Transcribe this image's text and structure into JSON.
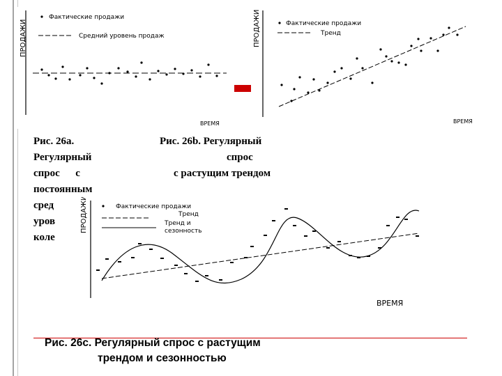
{
  "figure_a": {
    "ylabel": "ПРОДАЖИ",
    "xlabel": "ВРЕМЯ",
    "legend_actual": "Фактические продажи",
    "legend_mean": "Средний уровень продаж",
    "caption_lines": [
      "Рис. 26а.",
      "Регулярный",
      "спрос      с",
      "постоянным",
      "сред",
      "уров",
      "коле"
    ]
  },
  "figure_b": {
    "ylabel": "ПРОДАЖИ",
    "xlabel": "ВРЕМЯ",
    "legend_actual": "Фактические продажи",
    "legend_trend": "Тренд",
    "caption_lines": [
      "Рис. 26b. Регулярный",
      "спрос",
      "с растущим трендом"
    ]
  },
  "figure_c": {
    "ylabel": "ПРОДАЖИ",
    "xlabel": "ВРЕМЯ",
    "legend_actual": "Фактические продажи",
    "legend_trend": "Тренд",
    "legend_season_1": "Тренд и",
    "legend_season_2": "сезонность",
    "caption_lines": [
      "Рис. 26с. Регулярный спрос с растущим",
      "трендом и сезонностью"
    ]
  },
  "colors": {
    "accent": "#cc0000",
    "ink": "#000000"
  }
}
